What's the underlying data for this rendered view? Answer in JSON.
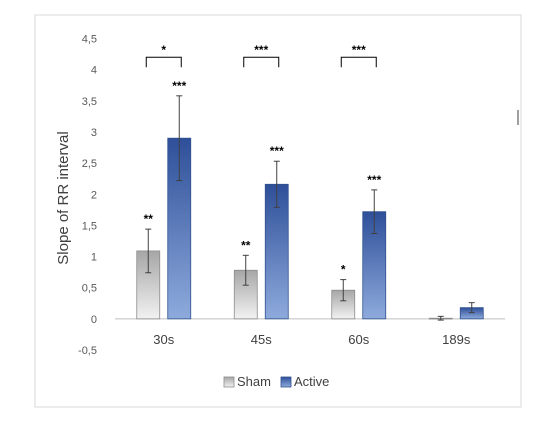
{
  "chart_data": {
    "type": "bar",
    "title": "",
    "xlabel": "",
    "ylabel": "Slope of RR interval",
    "categories": [
      "30s",
      "45s",
      "60s",
      "189s"
    ],
    "ylim": [
      -0.5,
      4.5
    ],
    "yticks": [
      -0.5,
      0,
      0.5,
      1,
      1.5,
      2,
      2.5,
      3,
      3.5,
      4,
      4.5
    ],
    "ytick_labels": [
      "-0,5",
      "0",
      "0,5",
      "1",
      "1,5",
      "2",
      "2,5",
      "3",
      "3,5",
      "4",
      "4,5"
    ],
    "grid": false,
    "legend_position": "bottom",
    "series": [
      {
        "name": "Sham",
        "color_top": "#a6a6a6",
        "color_bottom": "#f2f2f2",
        "values": [
          1.09,
          0.78,
          0.46,
          0.01
        ],
        "errors": [
          0.35,
          0.24,
          0.17,
          0.03
        ],
        "annotations": [
          "**",
          "**",
          "*",
          ""
        ]
      },
      {
        "name": "Active",
        "color_top": "#2e4f99",
        "color_bottom": "#8eaadc",
        "values": [
          2.9,
          2.16,
          1.72,
          0.18
        ],
        "errors": [
          0.68,
          0.37,
          0.35,
          0.08
        ],
        "annotations": [
          "***",
          "***",
          "***",
          ""
        ]
      }
    ],
    "comparisons": [
      {
        "category": "30s",
        "label": "*",
        "level": 4.2
      },
      {
        "category": "45s",
        "label": "***",
        "level": 4.2
      },
      {
        "category": "60s",
        "label": "***",
        "level": 4.2
      }
    ]
  }
}
